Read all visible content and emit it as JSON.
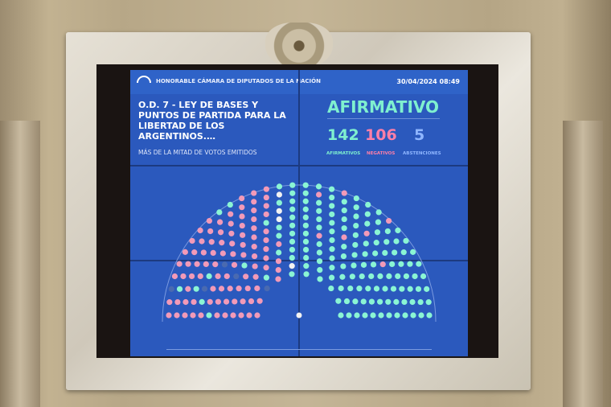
{
  "header": {
    "institution": "HONORABLE CÁMARA DE DIPUTADOS DE LA NACIÓN",
    "logo_text": "DIPUTADOS",
    "datetime": "30/04/2024 08:49"
  },
  "motion": {
    "title": "O.D. 7 - LEY DE BASES Y PUNTOS DE PARTIDA PARA LA LIBERTAD DE LOS ARGENTINOS.…",
    "majority": "MÁS DE LA MITAD DE VOTOS EMITIDOS"
  },
  "result": {
    "label": "AFIRMATIVO",
    "counts": [
      {
        "value": "142",
        "label": "AFIRMATIVOS",
        "color": "#7ff0cf"
      },
      {
        "value": "106",
        "label": "NEGATIVOS",
        "color": "#ff7fa8"
      },
      {
        "value": "5",
        "label": "ABSTENCIONES",
        "color": "#8fb6ff"
      }
    ]
  },
  "hemicycle": {
    "seats": 257,
    "colors": {
      "afirmativo": "#8af5d4",
      "negativo": "#f29ab8",
      "abstencion": "#f2f2f2",
      "ausente": "#4a6ab0"
    }
  }
}
